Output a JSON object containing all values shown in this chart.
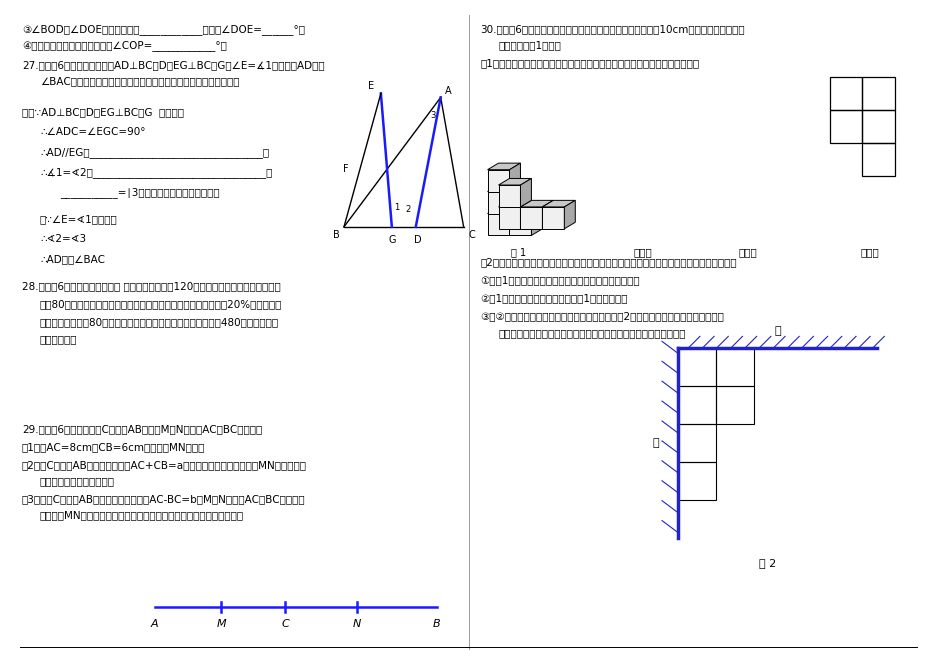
{
  "bg_color": "#ffffff",
  "text_color": "#000000",
  "page_width": 9.2,
  "page_height": 6.51
}
